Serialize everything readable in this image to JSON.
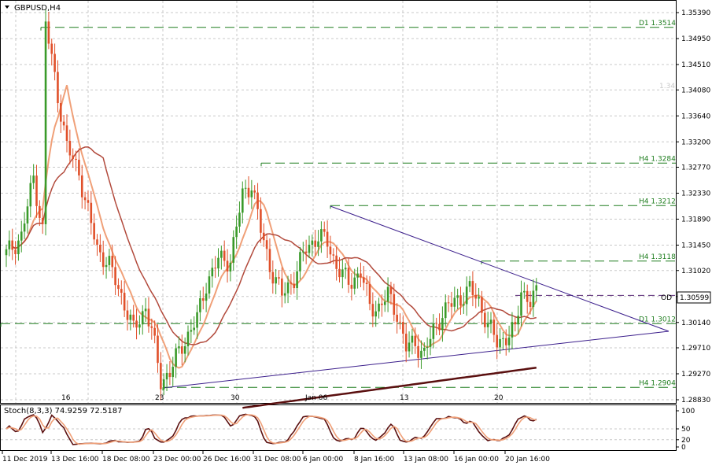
{
  "symbol_title": "GBPUSD,H4",
  "osc_title": "Stoch(8,3,3) 74.9259 72.5187",
  "price_box": "1.30599",
  "od_label": "OD",
  "faint_label": "1.34",
  "chart_data": {
    "type": "candlestick",
    "title": "GBPUSD,H4",
    "ylim": [
      1.2883,
      1.3539
    ],
    "y_ticks": [
      "1.35390",
      "1.34950",
      "1.34510",
      "1.34080",
      "1.33640",
      "1.33200",
      "1.32770",
      "1.32330",
      "1.31890",
      "1.31450",
      "1.31020",
      "1.30580",
      "1.30140",
      "1.29710",
      "1.29270",
      "1.28830"
    ],
    "osc_ticks": [
      "100",
      "50",
      "20",
      "0"
    ],
    "top_dates": [
      "16",
      "23",
      "30",
      "Jan 06",
      "13",
      "20"
    ],
    "bottom_dates": [
      "11 Dec 2019",
      "13 Dec 16:00",
      "18 Dec 08:00",
      "23 Dec 00:00",
      "26 Dec 16:00",
      "31 Dec 08:00",
      "6 Jan 00:00",
      "8 Jan 16:00",
      "13 Jan 08:00",
      "16 Jan 00:00",
      "20 Jan 16:00"
    ],
    "levels": [
      {
        "label": "D1 1.3514",
        "value": 1.3514
      },
      {
        "label": "H4 1.3284",
        "value": 1.3284
      },
      {
        "label": "H4 1.3212",
        "value": 1.3212
      },
      {
        "label": "H4 1.3118",
        "value": 1.3118
      },
      {
        "label": "D1 1.3012",
        "value": 1.3012
      },
      {
        "label": "H4 1.2904",
        "value": 1.2904
      }
    ],
    "current_price": 1.30599,
    "anchors": [
      [
        0,
        1.313
      ],
      [
        5,
        1.316
      ],
      [
        9,
        1.326
      ],
      [
        12,
        1.317
      ],
      [
        13,
        1.352
      ],
      [
        17,
        1.34
      ],
      [
        20,
        1.331
      ],
      [
        24,
        1.327
      ],
      [
        26,
        1.322
      ],
      [
        30,
        1.314
      ],
      [
        34,
        1.311
      ],
      [
        38,
        1.306
      ],
      [
        42,
        1.3
      ],
      [
        46,
        1.304
      ],
      [
        48,
        1.3
      ],
      [
        51,
        1.2915
      ],
      [
        54,
        1.293
      ],
      [
        58,
        1.2975
      ],
      [
        63,
        1.302
      ],
      [
        66,
        1.308
      ],
      [
        70,
        1.312
      ],
      [
        74,
        1.312
      ],
      [
        78,
        1.323
      ],
      [
        81,
        1.325
      ],
      [
        84,
        1.317
      ],
      [
        87,
        1.311
      ],
      [
        91,
        1.306
      ],
      [
        95,
        1.309
      ],
      [
        99,
        1.314
      ],
      [
        103,
        1.316
      ],
      [
        106,
        1.315
      ],
      [
        109,
        1.311
      ],
      [
        113,
        1.308
      ],
      [
        117,
        1.31
      ],
      [
        120,
        1.304
      ],
      [
        123,
        1.304
      ],
      [
        126,
        1.306
      ],
      [
        129,
        1.303
      ],
      [
        132,
        1.297
      ],
      [
        135,
        1.298
      ],
      [
        138,
        1.296
      ],
      [
        141,
        1.3
      ],
      [
        144,
        1.303
      ],
      [
        148,
        1.305
      ],
      [
        151,
        1.306
      ],
      [
        153,
        1.307
      ],
      [
        156,
        1.305
      ],
      [
        159,
        1.301
      ],
      [
        162,
        1.298
      ],
      [
        165,
        1.299
      ],
      [
        168,
        1.3
      ],
      [
        170,
        1.307
      ],
      [
        173,
        1.305
      ],
      [
        175,
        1.306
      ]
    ]
  }
}
